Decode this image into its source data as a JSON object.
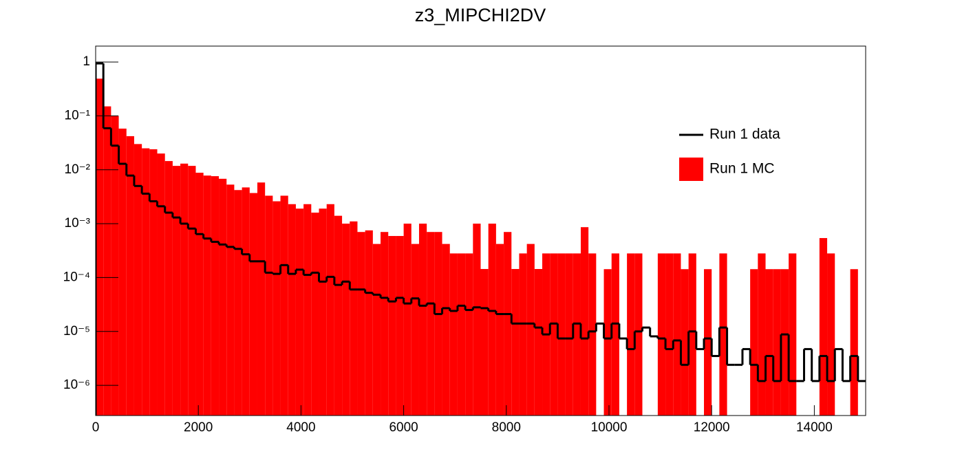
{
  "chart_data": {
    "type": "histogram",
    "title": "z3_MIPCHI2DV",
    "log_y": true,
    "legend": "upper right",
    "bins": [
      0,
      150,
      300,
      450,
      600,
      750,
      900,
      1050,
      1200,
      1350,
      1500,
      1650,
      1800,
      1950,
      2100,
      2250,
      2400,
      2550,
      2700,
      2850,
      3000,
      3150,
      3300,
      3450,
      3600,
      3750,
      3900,
      4050,
      4200,
      4350,
      4500,
      4650,
      4800,
      4950,
      5100,
      5250,
      5400,
      5550,
      5700,
      5850,
      6000,
      6150,
      6300,
      6450,
      6600,
      6750,
      6900,
      7050,
      7200,
      7350,
      7500,
      7650,
      7800,
      7950,
      8100,
      8250,
      8400,
      8550,
      8700,
      8850,
      9000,
      9150,
      9300,
      9450,
      9600,
      9750,
      9900,
      10050,
      10200,
      10350,
      10500,
      10650,
      10800,
      10950,
      11100,
      11250,
      11400,
      11550,
      11700,
      11850,
      12000,
      12150,
      12300,
      12450,
      12600,
      12750,
      12900,
      13050,
      13200,
      13350,
      13500,
      13650,
      13800,
      13950,
      14100,
      14250,
      14400,
      14550,
      14700,
      14850,
      15000
    ],
    "series": [
      {
        "name": "Run 1 data",
        "color": "#000000",
        "style": "step",
        "values": [
          0.94,
          0.059,
          0.028,
          0.0129,
          0.0078,
          0.005,
          0.0036,
          0.0026,
          0.0021,
          0.0016,
          0.0013,
          0.001,
          0.00081,
          0.00064,
          0.00053,
          0.00046,
          0.00041,
          0.00037,
          0.00034,
          0.00027,
          0.0002,
          0.0002,
          0.000123,
          0.000117,
          0.00017,
          0.000117,
          0.00014,
          0.000112,
          0.000123,
          8.4e-05,
          0.000103,
          7.3e-05,
          8.4e-05,
          6e-05,
          6e-05,
          5.2e-05,
          4.8e-05,
          4.2e-05,
          3.6e-05,
          4.2e-05,
          3.3e-05,
          4.1e-05,
          3e-05,
          3.3e-05,
          2.1e-05,
          2.7e-05,
          2.4e-05,
          3e-05,
          2.5e-05,
          2.8e-05,
          2.7e-05,
          2.4e-05,
          2.1e-05,
          2.1e-05,
          1.4e-05,
          1.4e-05,
          1.4e-05,
          1.18e-05,
          8.8e-06,
          1.4e-05,
          7.4e-06,
          7.4e-06,
          1.4e-05,
          7.4e-06,
          1e-05,
          1.4e-05,
          7.4e-06,
          1.4e-05,
          7.4e-06,
          4.7e-06,
          1e-05,
          1.18e-05,
          8.1e-06,
          7.4e-06,
          4.7e-06,
          6.8e-06,
          2.4e-06,
          1e-05,
          4.7e-06,
          7.4e-06,
          3.5e-06,
          1.18e-05,
          2.4e-06,
          2.4e-06,
          4.7e-06,
          2.4e-06,
          1.2e-06,
          3.5e-06,
          1.2e-06,
          8.8e-06,
          1.2e-06,
          1.2e-06,
          4.7e-06,
          1.2e-06,
          3.5e-06,
          1.2e-06,
          4.7e-06,
          1.2e-06,
          3.5e-06,
          1.2e-06
        ]
      },
      {
        "name": "Run 1 MC",
        "color": "#ff0000",
        "style": "fill",
        "values": [
          0.49,
          0.15,
          0.1,
          0.058,
          0.042,
          0.03,
          0.025,
          0.024,
          0.02,
          0.0145,
          0.0118,
          0.013,
          0.0118,
          0.0088,
          0.0078,
          0.0076,
          0.0068,
          0.0053,
          0.0042,
          0.0047,
          0.0037,
          0.0058,
          0.0033,
          0.0026,
          0.0033,
          0.0023,
          0.0019,
          0.0023,
          0.0016,
          0.0019,
          0.0023,
          0.0014,
          0.001,
          0.0011,
          0.0007,
          0.00075,
          0.00042,
          0.0007,
          0.00059,
          0.00059,
          0.001,
          0.00042,
          0.001,
          0.0007,
          0.0007,
          0.00042,
          0.00028,
          0.00028,
          0.00028,
          0.001,
          0.000144,
          0.001,
          0.00042,
          0.0007,
          0.000144,
          0.00028,
          0.00042,
          0.000144,
          0.00028,
          0.00028,
          0.00028,
          0.00028,
          0.00028,
          0.00086,
          0.00028,
          0,
          0.000143,
          0.00028,
          0,
          0.00028,
          0.00028,
          0,
          0,
          0.00028,
          0.00028,
          0.00028,
          0.000143,
          0.00028,
          0,
          0.000143,
          0,
          0.00028,
          0,
          0,
          0,
          0.000143,
          0.00028,
          0.000143,
          0.000143,
          0.000143,
          0.00028,
          0,
          0,
          0,
          0.00054,
          0.00028,
          0,
          0,
          0.000143,
          0
        ]
      }
    ],
    "xlim": [
      0,
      15000
    ],
    "xticks": [
      0,
      2000,
      4000,
      6000,
      8000,
      10000,
      12000,
      14000
    ],
    "ylim": [
      2.75e-07,
      1.97
    ],
    "yticks": [
      1,
      {
        "value": 0.1,
        "label": "10⁻¹"
      },
      {
        "value": 0.01,
        "label": "10⁻²"
      },
      {
        "value": 0.001,
        "label": "10⁻³"
      },
      {
        "value": 0.0001,
        "label": "10⁻⁴"
      },
      {
        "value": 1e-05,
        "label": "10⁻⁵"
      },
      {
        "value": 1e-06,
        "label": "10⁻⁶"
      }
    ]
  }
}
